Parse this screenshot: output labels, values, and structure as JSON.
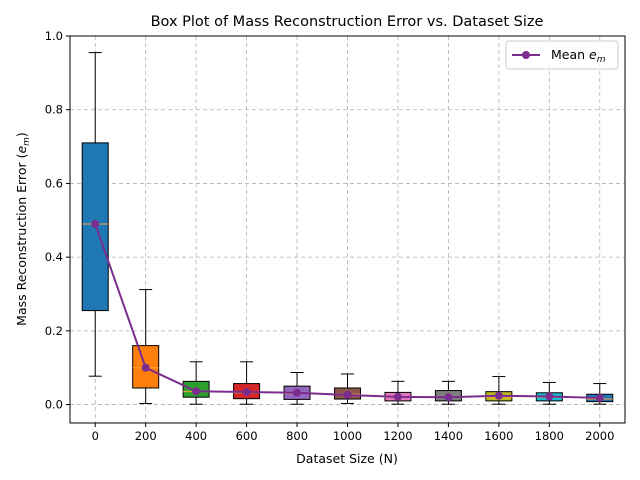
{
  "chart_data": {
    "type": "box",
    "title": "Box Plot of Mass Reconstruction Error vs. Dataset Size",
    "xlabel": "Dataset Size (N)",
    "ylabel_prefix": "Mass Reconstruction Error (",
    "ylabel_symbol": "e",
    "ylabel_sub": "m",
    "ylabel_suffix": ")",
    "ylim": [
      -0.05,
      1.0
    ],
    "yticks": [
      0.0,
      0.2,
      0.4,
      0.6,
      0.8,
      1.0
    ],
    "ytick_labels": [
      "0.0",
      "0.2",
      "0.4",
      "0.6",
      "0.8",
      "1.0"
    ],
    "grid": true,
    "legend": {
      "placement": "top-right",
      "entry_prefix": "Mean ",
      "entry_symbol": "e",
      "entry_sub": "m",
      "color": "#7b2d8e"
    },
    "categories": [
      "0",
      "200",
      "400",
      "600",
      "800",
      "1000",
      "1200",
      "1400",
      "1600",
      "1800",
      "2000"
    ],
    "boxes": [
      {
        "whislo": 0.077,
        "q1": 0.255,
        "med": 0.49,
        "q3": 0.71,
        "whishi": 0.955,
        "color": "#1f77b4"
      },
      {
        "whislo": 0.003,
        "q1": 0.045,
        "med": 0.1,
        "q3": 0.16,
        "whishi": 0.312,
        "color": "#ff7f0e"
      },
      {
        "whislo": 0.001,
        "q1": 0.02,
        "med": 0.035,
        "q3": 0.063,
        "whishi": 0.116,
        "color": "#2ca02c"
      },
      {
        "whislo": 0.001,
        "q1": 0.016,
        "med": 0.032,
        "q3": 0.057,
        "whishi": 0.116,
        "color": "#d62728"
      },
      {
        "whislo": 0.001,
        "q1": 0.014,
        "med": 0.03,
        "q3": 0.05,
        "whishi": 0.087,
        "color": "#9467bd"
      },
      {
        "whislo": 0.003,
        "q1": 0.015,
        "med": 0.028,
        "q3": 0.045,
        "whishi": 0.083,
        "color": "#8c564b"
      },
      {
        "whislo": 0.001,
        "q1": 0.01,
        "med": 0.02,
        "q3": 0.033,
        "whishi": 0.063,
        "color": "#e377c2"
      },
      {
        "whislo": 0.001,
        "q1": 0.01,
        "med": 0.02,
        "q3": 0.038,
        "whishi": 0.063,
        "color": "#7f7f7f"
      },
      {
        "whislo": 0.001,
        "q1": 0.01,
        "med": 0.02,
        "q3": 0.035,
        "whishi": 0.076,
        "color": "#bcbd22"
      },
      {
        "whislo": 0.001,
        "q1": 0.01,
        "med": 0.02,
        "q3": 0.032,
        "whishi": 0.06,
        "color": "#17becf"
      },
      {
        "whislo": 0.001,
        "q1": 0.008,
        "med": 0.015,
        "q3": 0.028,
        "whishi": 0.057,
        "color": "#1f77b4"
      }
    ],
    "mean_series": {
      "values": [
        0.49,
        0.1,
        0.036,
        0.034,
        0.032,
        0.026,
        0.021,
        0.02,
        0.024,
        0.022,
        0.018
      ],
      "color": "#7b2d8e"
    }
  }
}
